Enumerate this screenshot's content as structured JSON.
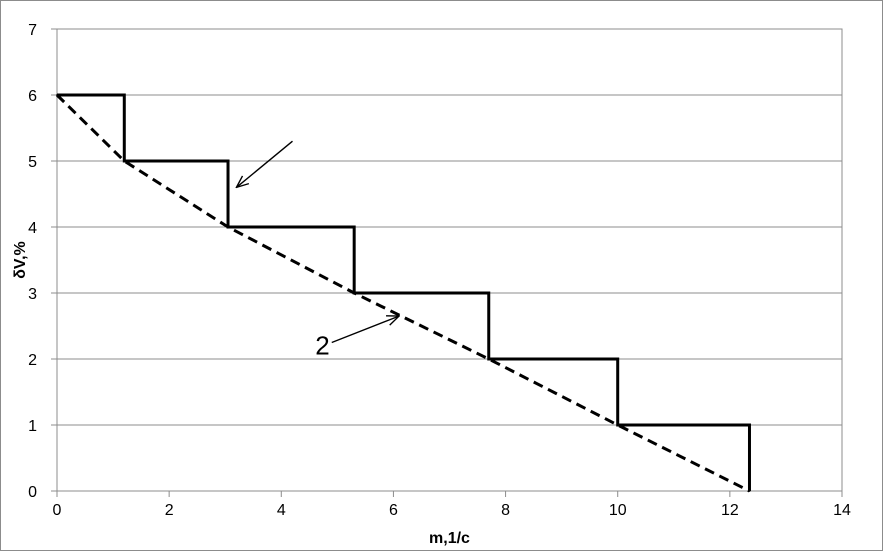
{
  "chart_data": {
    "type": "line",
    "title": "",
    "xlabel": "m,1/c",
    "ylabel": "δV,%",
    "xlim": [
      0,
      14
    ],
    "ylim": [
      0,
      7
    ],
    "x_ticks": [
      0,
      2,
      4,
      6,
      8,
      10,
      12,
      14
    ],
    "y_ticks": [
      0,
      1,
      2,
      3,
      4,
      5,
      6,
      7
    ],
    "grid": {
      "horizontal": true,
      "vertical": false
    },
    "legend": "none",
    "series": [
      {
        "style": "solid",
        "color": "#000000",
        "points": [
          [
            0,
            6
          ],
          [
            1.2,
            6
          ],
          [
            1.2,
            5
          ],
          [
            3.05,
            5
          ],
          [
            3.05,
            4
          ],
          [
            5.3,
            4
          ],
          [
            5.3,
            3
          ],
          [
            7.7,
            3
          ],
          [
            7.7,
            2
          ],
          [
            10,
            2
          ],
          [
            10,
            1
          ],
          [
            12.35,
            1
          ],
          [
            12.35,
            0
          ]
        ]
      },
      {
        "style": "dashed",
        "color": "#000000",
        "points": [
          [
            0,
            6
          ],
          [
            1.2,
            5
          ],
          [
            3.05,
            4
          ],
          [
            5.3,
            3
          ],
          [
            7.7,
            2
          ],
          [
            10,
            1
          ],
          [
            12.35,
            0
          ]
        ]
      }
    ],
    "annotations": [
      {
        "text": "",
        "from": [
          4.2,
          5.3
        ],
        "to": [
          3.2,
          4.6
        ]
      },
      {
        "text": "2",
        "from": [
          4.9,
          2.25
        ],
        "to": [
          6.1,
          2.65
        ]
      }
    ]
  }
}
